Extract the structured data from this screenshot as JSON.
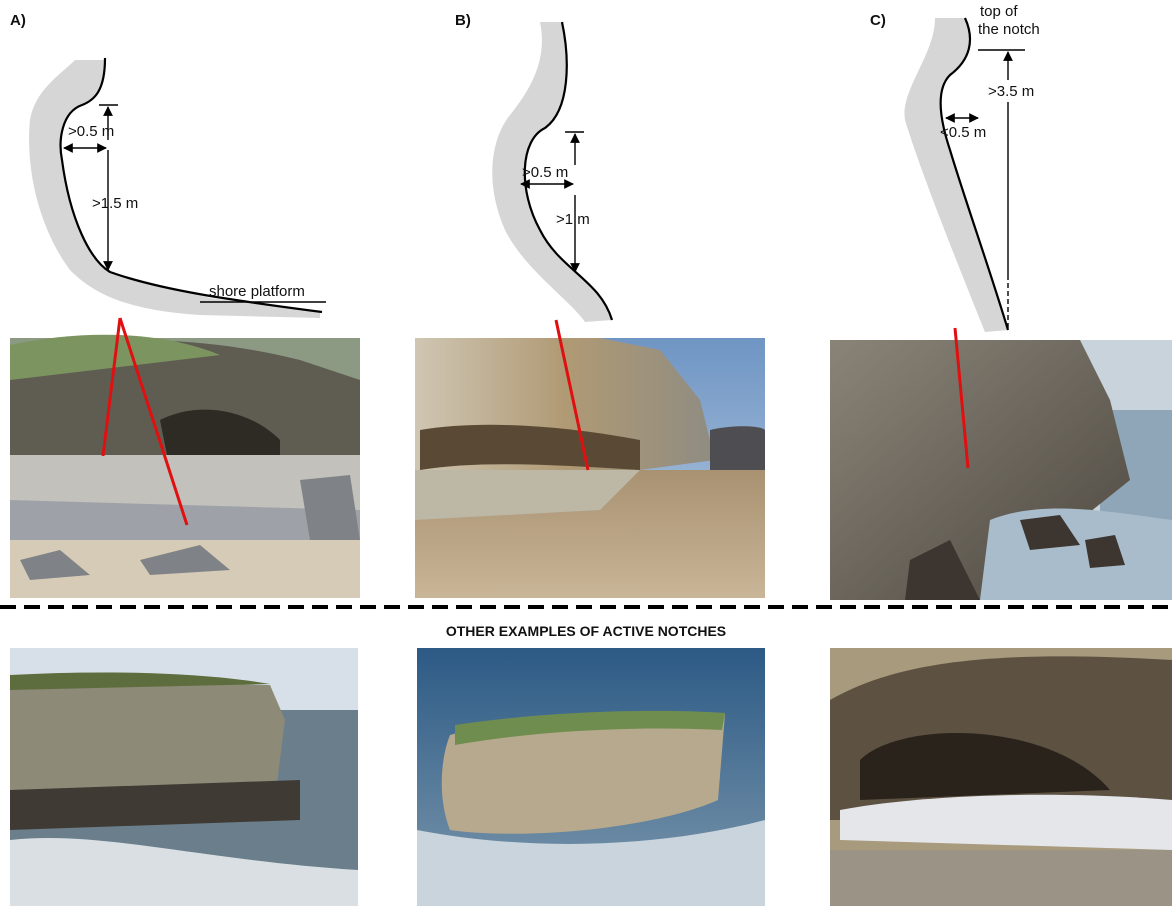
{
  "panels": [
    {
      "label": "A)",
      "annotations": [
        ">0.5 m",
        ">1.5 m",
        "shore platform"
      ]
    },
    {
      "label": "B)",
      "annotations": [
        ">0.5 m",
        ">1 m"
      ]
    },
    {
      "label": "C)",
      "annotations": [
        "top of",
        "the notch",
        ">3.5 m",
        "<0.5 m"
      ]
    }
  ],
  "section_title": "OTHER EXAMPLES OF ACTIVE NOTCHES"
}
